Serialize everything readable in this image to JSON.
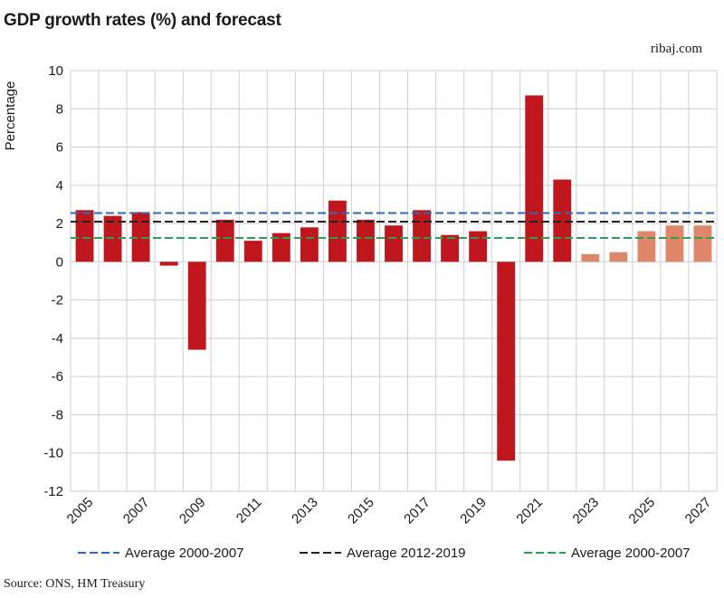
{
  "title": "GDP growth rates (%) and forecast",
  "brand": "ribaj.com",
  "source": "Source: ONS, HM Treasury",
  "colors": {
    "actual": "#c0171f",
    "forecast": "#e0876b",
    "avg_blue": "#2b6cb0",
    "avg_black": "#222222",
    "avg_green": "#2e9e4f",
    "grid": "#cfcfcf"
  },
  "chart_data": {
    "type": "bar",
    "ylabel": "Percentage",
    "ylim": [
      -12,
      10
    ],
    "yticks": [
      10,
      8,
      6,
      4,
      2,
      0,
      -2,
      -4,
      -6,
      -8,
      -10,
      -12
    ],
    "grid": true,
    "legend_position": "bottom",
    "categories": [
      "2005",
      "2006",
      "2007",
      "2008",
      "2009",
      "2010",
      "2011",
      "2012",
      "2013",
      "2014",
      "2015",
      "2016",
      "2017",
      "2018",
      "2019",
      "2020",
      "2021",
      "2022",
      "2023",
      "2024",
      "2025",
      "2026",
      "2027"
    ],
    "x_tick_labels": [
      "2005",
      "2007",
      "2009",
      "2011",
      "2013",
      "2015",
      "2017",
      "2019",
      "2021",
      "2023",
      "2025",
      "2027"
    ],
    "values": [
      2.7,
      2.4,
      2.6,
      -0.2,
      -4.6,
      2.2,
      1.1,
      1.5,
      1.8,
      3.2,
      2.2,
      1.9,
      2.7,
      1.4,
      1.6,
      -10.4,
      8.7,
      4.3,
      0.4,
      0.5,
      1.6,
      1.9,
      1.9
    ],
    "forecast": [
      false,
      false,
      false,
      false,
      false,
      false,
      false,
      false,
      false,
      false,
      false,
      false,
      false,
      false,
      false,
      false,
      false,
      false,
      true,
      true,
      true,
      true,
      true
    ],
    "reference_lines": [
      {
        "name": "Average 2000-2007",
        "value": 2.55,
        "color_key": "avg_blue"
      },
      {
        "name": "Average 2012-2019",
        "value": 2.1,
        "color_key": "avg_black"
      },
      {
        "name": "Average 2000-2007",
        "value": 1.25,
        "color_key": "avg_green"
      }
    ]
  }
}
